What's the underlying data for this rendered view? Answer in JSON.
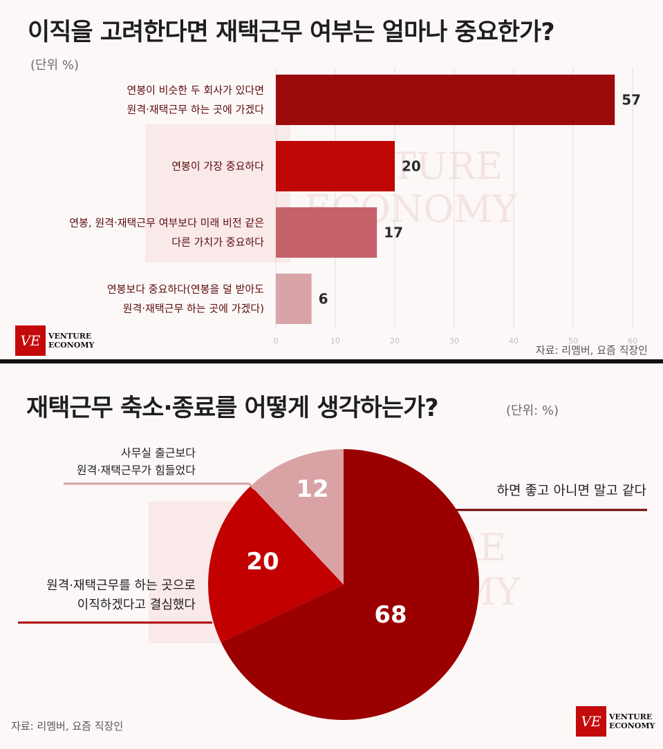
{
  "chart_data": [
    {
      "type": "bar",
      "title": "이직을 고려한다면 재택근무 여부는 얼마나 중요한가?",
      "unit_label": "(단위 %)",
      "categories": [
        [
          "연봉이 비슷한 두 회사가 있다면",
          "원격·재택근무 하는 곳에 가겠다"
        ],
        [
          "연봉이 가장 중요하다"
        ],
        [
          "연봉, 원격·재택근무 여부보다 미래 비전 같은",
          "다른 가치가 중요하다"
        ],
        [
          "연봉보다 중요하다(연봉을 덜 받아도",
          "원격·재택근무 하는 곳에 가겠다)"
        ]
      ],
      "values": [
        57,
        20,
        17,
        6
      ],
      "bar_colors": [
        "#9b0a0a",
        "#c10606",
        "#c66269",
        "#d9a4a8"
      ],
      "xlim": [
        0,
        60
      ],
      "xticks": [
        "0",
        "10",
        "20",
        "30",
        "40",
        "50",
        "60"
      ],
      "grid": true,
      "source": "자료: 리멤버, 요즘 직장인"
    },
    {
      "type": "pie",
      "title": "재택근무 축소·종료를 어떻게 생각하는가?",
      "unit_label": "(단위: %)",
      "slices": [
        {
          "label": "하면 좋고 아니면 말고 같다",
          "value": 68,
          "color": "#9b0000"
        },
        {
          "label": "원격·재택근무를 하는 곳으로 이직하겠다고 결심했다",
          "label_lines": [
            "원격·재택근무를 하는 곳으로",
            "이직하겠다고 결심했다"
          ],
          "value": 20,
          "color": "#c20000"
        },
        {
          "label": "사무실 출근보다 원격·재택근무가 힘들었다",
          "label_lines": [
            "사무실 출근보다",
            "원격·재택근무가 힘들었다"
          ],
          "value": 12,
          "color": "#d9a3a6"
        }
      ],
      "source": "자료: 리멤버, 요즘 직장인"
    }
  ],
  "branding": {
    "logo_mark": "VE",
    "logo_line1": "VENTURE",
    "logo_line2": "ECONOMY",
    "watermark_line1": "VENTURE",
    "watermark_line2": "ECONOMY"
  }
}
